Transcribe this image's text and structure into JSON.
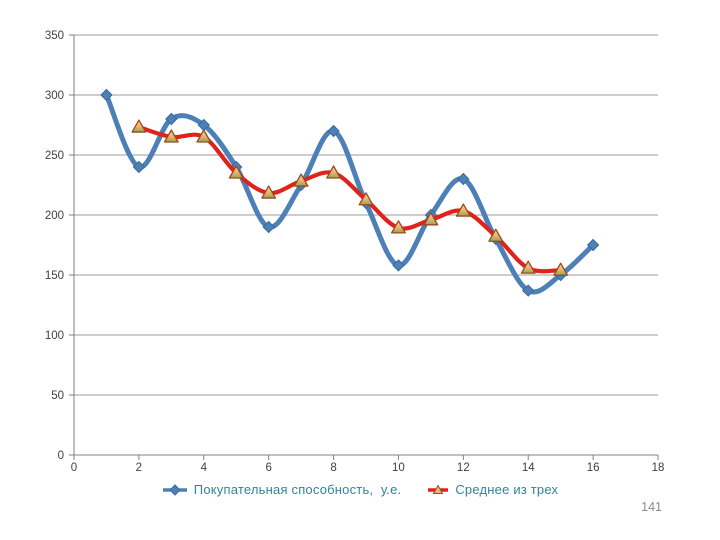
{
  "page_number": "141",
  "legend": {
    "items": [
      {
        "label": "Покупательная способность,  у.е.",
        "series": "series1"
      },
      {
        "label": "Среднее из трех",
        "series": "series2"
      }
    ]
  },
  "colors": {
    "background": "#FFFFFF",
    "series1_line": "#4C80B6",
    "series1_marker_fill": "#4C80B6",
    "series1_marker_stroke": "#3A6B9E",
    "series2_line": "#E0231A",
    "series2_marker_fill_top": "#F6D092",
    "series2_marker_fill_mid": "#E8B377",
    "series2_marker_fill_bottom": "#8FA84F",
    "series2_marker_stroke": "#9C4A1F",
    "gridline": "#9B9B9B",
    "axis": "#808080",
    "axis_label": "#404040",
    "legend_text": "#31849B",
    "page_number": "#8C8C8C"
  },
  "chart_data": {
    "type": "line",
    "title": "",
    "xlabel": "",
    "ylabel": "",
    "xlim": [
      0,
      18
    ],
    "ylim": [
      0,
      350
    ],
    "xticks": [
      0,
      2,
      4,
      6,
      8,
      10,
      12,
      14,
      16,
      18
    ],
    "yticks": [
      0,
      50,
      100,
      150,
      200,
      250,
      300,
      350
    ],
    "grid": "horizontal",
    "legend_position": "bottom",
    "smooth": true,
    "series": [
      {
        "name": "Покупательная способность,  у.е.",
        "marker": "diamond",
        "x": [
          1,
          2,
          3,
          4,
          5,
          6,
          7,
          8,
          9,
          10,
          11,
          12,
          13,
          14,
          15,
          16
        ],
        "values": [
          300,
          240,
          280,
          275,
          240,
          190,
          225,
          270,
          210,
          158,
          200,
          230,
          180,
          137,
          150,
          175
        ]
      },
      {
        "name": "Среднее из трех",
        "marker": "triangle",
        "x": [
          2,
          3,
          4,
          5,
          6,
          7,
          8,
          9,
          10,
          11,
          12,
          13,
          14,
          15
        ],
        "values": [
          273.3,
          265,
          265,
          235,
          218.3,
          228.3,
          235,
          212.7,
          189.3,
          196,
          203.3,
          182.3,
          155.7,
          154
        ]
      }
    ]
  }
}
